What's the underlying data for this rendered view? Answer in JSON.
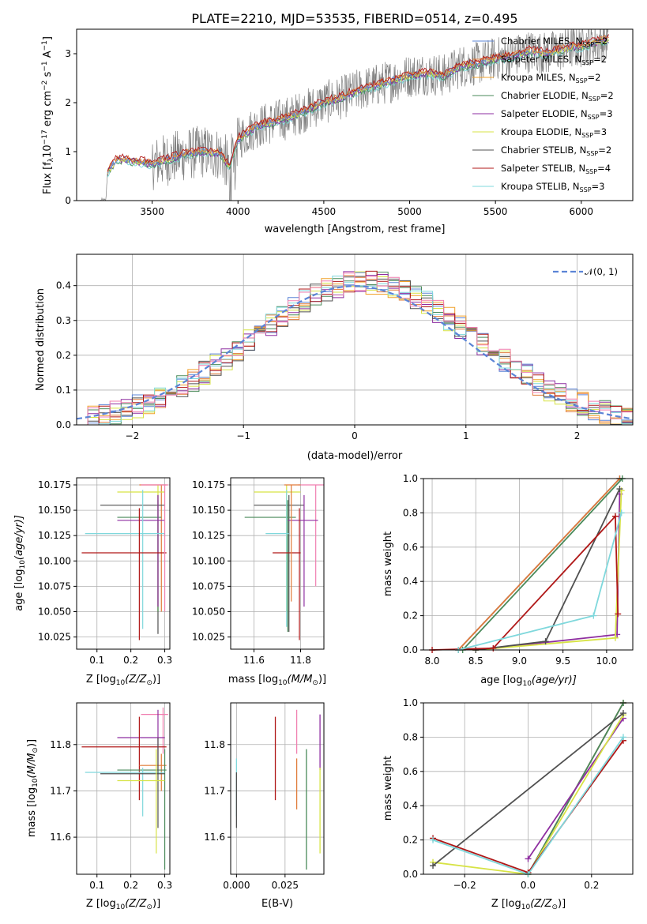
{
  "figure": {
    "title": "PLATE=2210, MJD=53535, FIBERID=0514, z=0.495"
  },
  "colors": {
    "chabrier_miles": "#5b84d6",
    "salpeter_miles": "#e07b39",
    "kroupa_miles": "#f0a12b",
    "chabrier_elodie": "#4a8a5a",
    "salpeter_elodie": "#8e2ea0",
    "kroupa_elodie": "#d7e345",
    "chabrier_stelib": "#505050",
    "salpeter_stelib": "#b01818",
    "kroupa_stelib": "#7fd8dc",
    "extra_pink": "#f07fb0",
    "data": "#808080",
    "gaussian": "#5b84d6"
  },
  "chart_data": [
    {
      "id": "spectrum",
      "type": "line",
      "title": "PLATE=2210, MJD=53535, FIBERID=0514, z=0.495",
      "xlabel": "wavelength [Angstrom, rest frame]",
      "ylabel": "Flux [f",
      "ylabel_sub": "λ",
      "ylabel_rest": "10",
      "ylabel_exp": "−17",
      "ylabel_units": " erg cm",
      "ylabel_u1": "−2",
      "ylabel_u2": " s",
      "ylabel_u3": "−1",
      "ylabel_u4": " A",
      "ylabel_u5": "−1",
      "ylabel_end": "]",
      "xlim": [
        3060,
        6300
      ],
      "ylim": [
        0,
        3.5
      ],
      "xticks": [
        "3500",
        "4000",
        "4500",
        "5000",
        "5500",
        "6000"
      ],
      "xtick_values": [
        3500,
        4000,
        4500,
        5000,
        5500,
        6000
      ],
      "yticks": [
        "0",
        "1",
        "2",
        "3"
      ],
      "ytick_values": [
        0,
        1,
        2,
        3
      ],
      "legend": [
        {
          "name": "Chabrier MILES, N",
          "sub": "SSP",
          "tail": "=2"
        },
        {
          "name": "Salpeter MILES, N",
          "sub": "SSP",
          "tail": "=2"
        },
        {
          "name": "Kroupa MILES, N",
          "sub": "SSP",
          "tail": "=2"
        },
        {
          "name": "Chabrier ELODIE, N",
          "sub": "SSP",
          "tail": "=2"
        },
        {
          "name": "Salpeter ELODIE, N",
          "sub": "SSP",
          "tail": "=3"
        },
        {
          "name": "Kroupa ELODIE, N",
          "sub": "SSP",
          "tail": "=3"
        },
        {
          "name": "Chabrier STELIB, N",
          "sub": "SSP",
          "tail": "=2"
        },
        {
          "name": "Salpeter STELIB, N",
          "sub": "SSP",
          "tail": "=4"
        },
        {
          "name": "Kroupa STELIB, N",
          "sub": "SSP",
          "tail": "=3"
        }
      ],
      "continuum": [
        [
          3200,
          0.0
        ],
        [
          3230,
          0.0
        ],
        [
          3240,
          0.6
        ],
        [
          3300,
          0.85
        ],
        [
          3400,
          0.8
        ],
        [
          3500,
          0.75
        ],
        [
          3600,
          0.85
        ],
        [
          3700,
          0.95
        ],
        [
          3800,
          1.0
        ],
        [
          3900,
          0.95
        ],
        [
          3950,
          0.7
        ],
        [
          4000,
          1.25
        ],
        [
          4100,
          1.5
        ],
        [
          4200,
          1.6
        ],
        [
          4300,
          1.7
        ],
        [
          4400,
          1.85
        ],
        [
          4500,
          2.0
        ],
        [
          4600,
          2.1
        ],
        [
          4700,
          2.25
        ],
        [
          4800,
          2.35
        ],
        [
          4900,
          2.45
        ],
        [
          5000,
          2.55
        ],
        [
          5100,
          2.6
        ],
        [
          5200,
          2.55
        ],
        [
          5300,
          2.75
        ],
        [
          5400,
          2.8
        ],
        [
          5500,
          2.9
        ],
        [
          5600,
          2.95
        ],
        [
          5700,
          3.05
        ],
        [
          5800,
          3.0
        ],
        [
          5900,
          3.1
        ],
        [
          6000,
          3.15
        ],
        [
          6100,
          3.25
        ],
        [
          6160,
          3.3
        ]
      ]
    },
    {
      "id": "residuals",
      "type": "line",
      "xlabel": "(data-model)/error",
      "ylabel": "Normed distribution",
      "xlim": [
        -2.5,
        2.5
      ],
      "ylim": [
        0,
        0.49
      ],
      "xticks": [
        "−2",
        "−1",
        "0",
        "1",
        "2"
      ],
      "xtick_values": [
        -2,
        -1,
        0,
        1,
        2
      ],
      "yticks": [
        "0.0",
        "0.1",
        "0.2",
        "0.3",
        "0.4"
      ],
      "ytick_values": [
        0,
        0.1,
        0.2,
        0.3,
        0.4
      ],
      "legend": [
        {
          "name": "𝒩(0, 1)"
        }
      ],
      "series": [
        {
          "name": "Chabrier MILES",
          "values_note": "histogram"
        }
      ]
    },
    {
      "id": "age_vs_Z",
      "type": "scatter",
      "xlabel": "Z [log",
      "xlabel_sub": "10",
      "xlabel_rest": "(Z/Z",
      "xlabel_sun": "⊙",
      "xlabel_end": ")]",
      "ylabel": "age  [log",
      "ylabel_sub": "10",
      "ylabel_rest": "(age/yr)]",
      "xlim": [
        0.04,
        0.315
      ],
      "ylim": [
        10.013,
        10.182
      ],
      "xticks": [
        "0.1",
        "0.2",
        "0.3"
      ],
      "xtick_values": [
        0.1,
        0.2,
        0.3
      ],
      "yticks": [
        "10.025",
        "10.050",
        "10.075",
        "10.100",
        "10.125",
        "10.150",
        "10.175"
      ],
      "ytick_values": [
        10.025,
        10.05,
        10.075,
        10.1,
        10.125,
        10.15,
        10.175
      ]
    },
    {
      "id": "age_vs_mass",
      "type": "scatter",
      "xlabel": "mass [log",
      "xlabel_sub": "10",
      "xlabel_rest": "(M/M",
      "xlabel_sun": "⊙",
      "xlabel_end": ")]",
      "xlim": [
        11.5,
        11.9
      ],
      "ylim": [
        10.013,
        10.182
      ],
      "xticks": [
        "11.6",
        "11.8"
      ],
      "xtick_values": [
        11.6,
        11.8
      ],
      "yticks": [
        "10.025",
        "10.050",
        "10.075",
        "10.100",
        "10.125",
        "10.150",
        "10.175"
      ],
      "ytick_values": [
        10.025,
        10.05,
        10.075,
        10.1,
        10.125,
        10.15,
        10.175
      ]
    },
    {
      "id": "weight_vs_age",
      "type": "line",
      "xlabel": "age  [log",
      "xlabel_sub": "10",
      "xlabel_rest": "(age/yr)]",
      "ylabel": "mass weight",
      "xlim": [
        7.9,
        10.3
      ],
      "ylim": [
        0,
        1
      ],
      "xticks": [
        "8.0",
        "8.5",
        "9.0",
        "9.5",
        "10.0"
      ],
      "xtick_values": [
        8.0,
        8.5,
        9.0,
        9.5,
        10.0
      ],
      "yticks": [
        "0.0",
        "0.2",
        "0.4",
        "0.6",
        "0.8",
        "1.0"
      ],
      "ytick_values": [
        0,
        0.2,
        0.4,
        0.6,
        0.8,
        1.0
      ],
      "series": [
        {
          "name": "Chabrier MILES",
          "color": "chabrier_miles",
          "points": [
            [
              8.3,
              0.0
            ],
            [
              10.15,
              1.0
            ]
          ]
        },
        {
          "name": "Salpeter MILES",
          "color": "salpeter_miles",
          "points": [
            [
              8.3,
              0.0
            ],
            [
              10.15,
              1.0
            ]
          ]
        },
        {
          "name": "Chabrier ELODIE",
          "color": "chabrier_elodie",
          "points": [
            [
              8.35,
              0.0
            ],
            [
              10.18,
              1.0
            ]
          ]
        },
        {
          "name": "Salpeter ELODIE",
          "color": "salpeter_elodie",
          "points": [
            [
              8.5,
              0.0
            ],
            [
              10.12,
              0.09
            ],
            [
              10.15,
              0.91
            ]
          ]
        },
        {
          "name": "Kroupa ELODIE",
          "color": "kroupa_elodie",
          "points": [
            [
              8.5,
              0.0
            ],
            [
              10.1,
              0.07
            ],
            [
              10.17,
              0.93
            ]
          ]
        },
        {
          "name": "Chabrier STELIB",
          "color": "chabrier_stelib",
          "points": [
            [
              8.5,
              0.0
            ],
            [
              9.3,
              0.05
            ],
            [
              10.15,
              0.94
            ]
          ]
        },
        {
          "name": "Salpeter STELIB",
          "color": "salpeter_stelib",
          "points": [
            [
              8.0,
              0.0
            ],
            [
              8.7,
              0.01
            ],
            [
              10.1,
              0.78
            ],
            [
              10.13,
              0.21
            ]
          ]
        },
        {
          "name": "Kroupa STELIB",
          "color": "kroupa_stelib",
          "points": [
            [
              8.3,
              0.0
            ],
            [
              9.85,
              0.2
            ],
            [
              10.17,
              0.8
            ]
          ]
        }
      ]
    },
    {
      "id": "mass_vs_Z",
      "type": "scatter",
      "xlabel": "Z [log",
      "xlabel_sub": "10",
      "xlabel_rest": "(Z/Z",
      "xlabel_sun": "⊙",
      "xlabel_end": ")]",
      "ylabel": "mass [log",
      "ylabel_sub": "10",
      "ylabel_rest": "(M/M",
      "ylabel_sun": "⊙",
      "ylabel_end": ")]",
      "xlim": [
        0.04,
        0.315
      ],
      "ylim": [
        11.52,
        11.89
      ],
      "xticks": [
        "0.1",
        "0.2",
        "0.3"
      ],
      "xtick_values": [
        0.1,
        0.2,
        0.3
      ],
      "yticks": [
        "11.6",
        "11.7",
        "11.8"
      ],
      "ytick_values": [
        11.6,
        11.7,
        11.8
      ]
    },
    {
      "id": "mass_vs_ebv",
      "type": "scatter",
      "xlabel": "E(B-V)",
      "xlim": [
        -0.003,
        0.045
      ],
      "ylim": [
        11.52,
        11.89
      ],
      "xticks": [
        "0.000",
        "0.025"
      ],
      "xtick_values": [
        0.0,
        0.025
      ],
      "yticks": [
        "11.6",
        "11.7",
        "11.8"
      ],
      "ytick_values": [
        11.6,
        11.7,
        11.8
      ]
    },
    {
      "id": "weight_vs_Z",
      "type": "line",
      "xlabel": "Z [log",
      "xlabel_sub": "10",
      "xlabel_rest": "(Z/Z",
      "xlabel_sun": "⊙",
      "xlabel_end": ")]",
      "ylabel": "mass weight",
      "xlim": [
        -0.33,
        0.33
      ],
      "ylim": [
        0,
        1
      ],
      "xticks": [
        "−0.2",
        "0.0",
        "0.2"
      ],
      "xtick_values": [
        -0.2,
        0.0,
        0.2
      ],
      "yticks": [
        "0.0",
        "0.2",
        "0.4",
        "0.6",
        "0.8",
        "1.0"
      ],
      "ytick_values": [
        0,
        0.2,
        0.4,
        0.6,
        0.8,
        1.0
      ],
      "series": [
        {
          "name": "Chabrier MILES",
          "color": "chabrier_miles",
          "points": [
            [
              0.0,
              0.0
            ],
            [
              0.3,
              1.0
            ]
          ]
        },
        {
          "name": "Salpeter MILES",
          "color": "salpeter_miles",
          "points": [
            [
              0.0,
              0.0
            ],
            [
              0.3,
              1.0
            ]
          ]
        },
        {
          "name": "Chabrier ELODIE",
          "color": "chabrier_elodie",
          "points": [
            [
              0.0,
              0.0
            ],
            [
              0.3,
              1.0
            ]
          ]
        },
        {
          "name": "Salpeter ELODIE",
          "color": "salpeter_elodie",
          "points": [
            [
              0.0,
              0.09
            ],
            [
              0.3,
              0.91
            ]
          ]
        },
        {
          "name": "Kroupa ELODIE",
          "color": "kroupa_elodie",
          "points": [
            [
              -0.3,
              0.07
            ],
            [
              0.0,
              0.0
            ],
            [
              0.3,
              0.93
            ]
          ]
        },
        {
          "name": "Chabrier STELIB",
          "color": "chabrier_stelib",
          "points": [
            [
              -0.3,
              0.05
            ],
            [
              0.3,
              0.94
            ]
          ]
        },
        {
          "name": "Salpeter STELIB",
          "color": "salpeter_stelib",
          "points": [
            [
              -0.3,
              0.21
            ],
            [
              0.0,
              0.01
            ],
            [
              0.3,
              0.78
            ]
          ]
        },
        {
          "name": "Kroupa STELIB",
          "color": "kroupa_stelib",
          "points": [
            [
              -0.3,
              0.2
            ],
            [
              0.0,
              0.0
            ],
            [
              0.3,
              0.8
            ]
          ]
        }
      ]
    }
  ]
}
